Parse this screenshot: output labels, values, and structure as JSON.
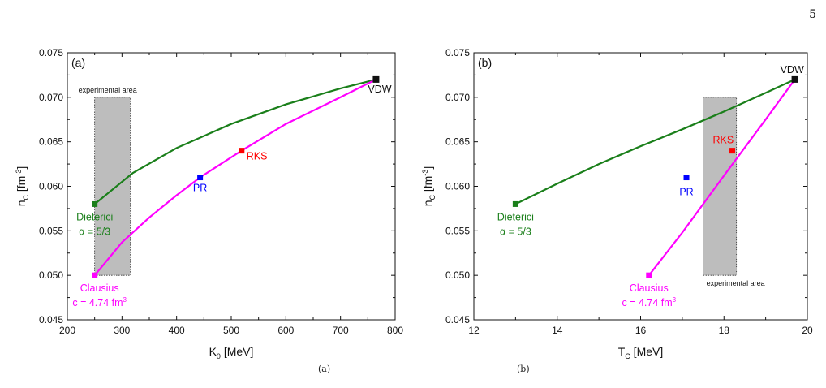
{
  "page_number": "5",
  "bottom_marks": [
    "(a)",
    "(b)"
  ],
  "chart_data": [
    {
      "type": "line",
      "panel_label": "(a)",
      "xlabel_main": "K",
      "xlabel_sub": "0",
      "xlabel_unit": " [MeV]",
      "ylabel_main": "n",
      "ylabel_sub": "C",
      "ylabel_unit": " [fm",
      "ylabel_sup": "-3",
      "ylabel_close": "]",
      "xlim": [
        200,
        800
      ],
      "ylim": [
        0.045,
        0.075
      ],
      "xticks": [
        "200",
        "300",
        "400",
        "500",
        "600",
        "700",
        "800"
      ],
      "xtick_values": [
        200,
        300,
        400,
        500,
        600,
        700,
        800
      ],
      "yticks": [
        "0.045",
        "0.050",
        "0.055",
        "0.060",
        "0.065",
        "0.070",
        "0.075"
      ],
      "ytick_values": [
        0.045,
        0.05,
        0.055,
        0.06,
        0.065,
        0.07,
        0.075
      ],
      "experimental_area": {
        "label": "experimental area",
        "x": [
          250,
          315
        ],
        "y": [
          0.05,
          0.07
        ],
        "label_position": "top"
      },
      "series": [
        {
          "color": "#1a7f1a",
          "points": [
            [
              250,
              0.058
            ],
            [
              320,
              0.0615
            ],
            [
              400,
              0.0643
            ],
            [
              500,
              0.067
            ],
            [
              600,
              0.0692
            ],
            [
              700,
              0.071
            ],
            [
              765,
              0.072
            ]
          ]
        },
        {
          "color": "#ff00ff",
          "points": [
            [
              250,
              0.05
            ],
            [
              300,
              0.0537
            ],
            [
              350,
              0.0565
            ],
            [
              400,
              0.059
            ],
            [
              443,
              0.061
            ],
            [
              519,
              0.064
            ],
            [
              600,
              0.067
            ],
            [
              700,
              0.07
            ],
            [
              765,
              0.072
            ]
          ]
        }
      ],
      "markers": [
        {
          "label": "VDW",
          "x": 765,
          "y": 0.072,
          "color": "#111111"
        },
        {
          "label": "RKS",
          "x": 519,
          "y": 0.064,
          "color": "#ff0000"
        },
        {
          "label": "PR",
          "x": 443,
          "y": 0.061,
          "color": "#0000ff"
        },
        {
          "label": "Dieterici",
          "label2": "α = 5/3",
          "x": 250,
          "y": 0.058,
          "color": "#1a7f1a"
        },
        {
          "label": "Clausius",
          "label2": "c = 4.74 fm",
          "label2_sup": "3",
          "x": 250,
          "y": 0.05,
          "color": "#ff00ff"
        }
      ]
    },
    {
      "type": "line",
      "panel_label": "(b)",
      "xlabel_main": "T",
      "xlabel_sub": "C",
      "xlabel_unit": " [MeV]",
      "ylabel_main": "n",
      "ylabel_sub": "C",
      "ylabel_unit": " [fm",
      "ylabel_sup": "-3",
      "ylabel_close": "]",
      "xlim": [
        12,
        20
      ],
      "ylim": [
        0.045,
        0.075
      ],
      "xticks": [
        "12",
        "14",
        "16",
        "18",
        "20"
      ],
      "xtick_values": [
        12,
        14,
        16,
        18,
        20
      ],
      "yticks": [
        "0.045",
        "0.050",
        "0.055",
        "0.060",
        "0.065",
        "0.070",
        "0.075"
      ],
      "ytick_values": [
        0.045,
        0.05,
        0.055,
        0.06,
        0.065,
        0.07,
        0.075
      ],
      "experimental_area": {
        "label": "experimental area",
        "x": [
          17.5,
          18.3
        ],
        "y": [
          0.05,
          0.07
        ],
        "label_position": "bottom"
      },
      "series": [
        {
          "color": "#1a7f1a",
          "points": [
            [
              13.0,
              0.058
            ],
            [
              14.0,
              0.0603
            ],
            [
              15.0,
              0.0625
            ],
            [
              16.0,
              0.0645
            ],
            [
              17.0,
              0.0664
            ],
            [
              18.0,
              0.0684
            ],
            [
              19.0,
              0.0705
            ],
            [
              19.7,
              0.072
            ]
          ]
        },
        {
          "color": "#ff00ff",
          "points": [
            [
              16.2,
              0.05
            ],
            [
              17.0,
              0.0548
            ],
            [
              18.0,
              0.0612
            ],
            [
              19.0,
              0.0675
            ],
            [
              19.7,
              0.072
            ]
          ]
        }
      ],
      "markers": [
        {
          "label": "VDW",
          "x": 19.7,
          "y": 0.072,
          "color": "#111111"
        },
        {
          "label": "RKS",
          "x": 18.2,
          "y": 0.064,
          "color": "#ff0000"
        },
        {
          "label": "PR",
          "x": 17.1,
          "y": 0.061,
          "color": "#0000ff"
        },
        {
          "label": "Dieterici",
          "label2": "α = 5/3",
          "x": 13.0,
          "y": 0.058,
          "color": "#1a7f1a"
        },
        {
          "label": "Clausius",
          "label2": "c = 4.74 fm",
          "label2_sup": "3",
          "x": 16.2,
          "y": 0.05,
          "color": "#ff00ff"
        }
      ]
    }
  ]
}
